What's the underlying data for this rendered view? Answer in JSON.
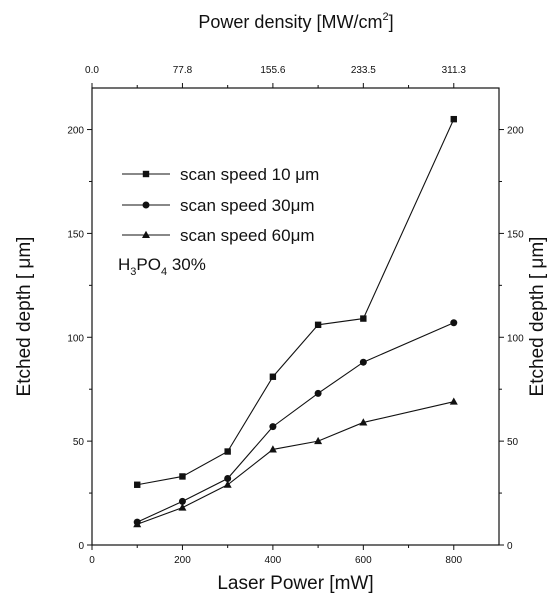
{
  "chart_data": {
    "type": "line",
    "title": "",
    "xlabel": "Laser Power [mW]",
    "ylabel": "Etched depth [  μm]",
    "ylabel_right": "Etched depth [  μm]",
    "top_axis": {
      "label_pre": "Power density [MW/cm",
      "label_sup": "2",
      "label_post": "]",
      "ticks": [
        "0.0",
        "77.8",
        "155.6",
        "233.5",
        "311.3"
      ],
      "tick_positions_in_x_units": [
        0,
        200,
        400,
        600,
        800
      ]
    },
    "xlim": [
      0,
      900
    ],
    "ylim": [
      0,
      220
    ],
    "x_ticks": [
      0,
      200,
      400,
      600,
      800
    ],
    "y_ticks": [
      0,
      50,
      100,
      150,
      200
    ],
    "grid": false,
    "legend_position": "top-left",
    "annotation": {
      "pre": "H",
      "sub1": "3",
      "mid": "PO",
      "sub2": "4",
      "post": " 30%"
    },
    "series": [
      {
        "name": "scan speed 10 μm",
        "marker": "square",
        "x": [
          100,
          200,
          300,
          400,
          500,
          600,
          800
        ],
        "y": [
          29,
          33,
          45,
          81,
          106,
          109,
          205
        ]
      },
      {
        "name": "scan speed 30μm",
        "marker": "circle",
        "x": [
          100,
          200,
          300,
          400,
          500,
          600,
          800
        ],
        "y": [
          11,
          21,
          32,
          57,
          73,
          88,
          107
        ]
      },
      {
        "name": "scan speed 60μm",
        "marker": "triangle",
        "x": [
          100,
          200,
          300,
          400,
          500,
          600,
          800
        ],
        "y": [
          10,
          18,
          29,
          46,
          50,
          59,
          69
        ]
      }
    ],
    "colors": {
      "line": "#111111",
      "background": "#ffffff"
    }
  }
}
